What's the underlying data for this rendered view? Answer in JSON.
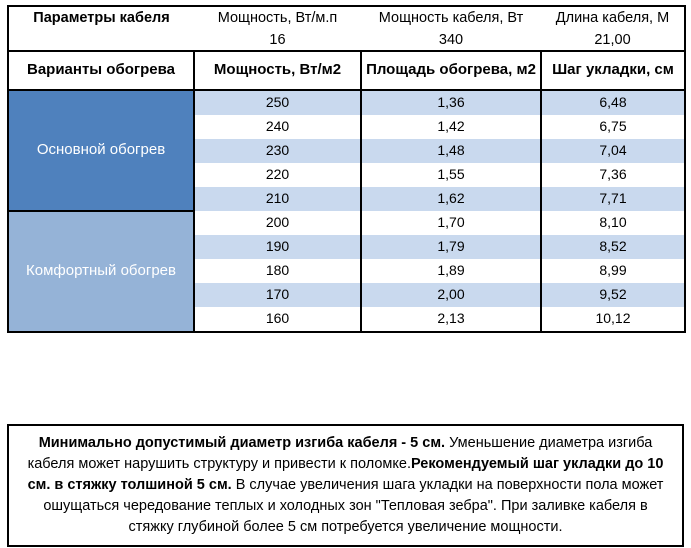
{
  "colors": {
    "section_primary": "#4f81bd",
    "section_comfort": "#95b3d7",
    "stripe": "#c9d9ee",
    "border": "#000000"
  },
  "params_header": {
    "title": "Параметры кабеля",
    "columns": [
      {
        "label": "Мощность, Вт/м.п",
        "value": "16"
      },
      {
        "label": "Мощность кабеля, Вт",
        "value": "340"
      },
      {
        "label": "Длина кабеля, М",
        "value": "21,00"
      }
    ]
  },
  "table": {
    "headers": [
      "Варианты обогрева",
      "Мощность, Вт/м2",
      "Площадь обогрева, м2",
      "Шаг укладки, см"
    ],
    "sections": [
      {
        "name": "Основной обогрев",
        "rows": [
          [
            "250",
            "1,36",
            "6,48"
          ],
          [
            "240",
            "1,42",
            "6,75"
          ],
          [
            "230",
            "1,48",
            "7,04"
          ],
          [
            "220",
            "1,55",
            "7,36"
          ],
          [
            "210",
            "1,62",
            "7,71"
          ]
        ]
      },
      {
        "name": "Комфортный обогрев",
        "rows": [
          [
            "200",
            "1,70",
            "8,10"
          ],
          [
            "190",
            "1,79",
            "8,52"
          ],
          [
            "180",
            "1,89",
            "8,99"
          ],
          [
            "170",
            "2,00",
            "9,52"
          ],
          [
            "160",
            "2,13",
            "10,12"
          ]
        ]
      }
    ]
  },
  "note": {
    "segments": [
      {
        "text": "Минимально допустимый диаметр изгиба кабеля - 5 см.",
        "bold": true
      },
      {
        "text": "  Уменьшение диаметра изгиба кабеля может нарушить структуру и привести к поломке.",
        "bold": false
      },
      {
        "text": "Рекомендуемый шаг укладки до 10 см. в стяжку толшиной 5 см.",
        "bold": true
      },
      {
        "text": " В  случае увеличения шага укладки на поверхности пола может ошущаться чередование теплых и холодных зон \"Тепловая зебра\". При заливке кабеля в стяжку глубиной более 5 см потребуется увеличение мощности.",
        "bold": false
      }
    ]
  }
}
